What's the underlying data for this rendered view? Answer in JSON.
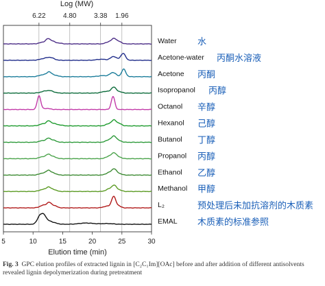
{
  "chart_data": {
    "type": "line",
    "top_axis": {
      "title": "Log (MW)",
      "ticks": [
        "6.22",
        "4.80",
        "3.38",
        "1.96"
      ],
      "tick_x": [
        11,
        16.2,
        21.4,
        25
      ]
    },
    "bottom_axis": {
      "title": "Elution time (min)",
      "ticks": [
        5,
        10,
        15,
        20,
        25,
        30
      ],
      "xlim": [
        5,
        30
      ]
    },
    "gridlines_x": [
      11,
      16.2,
      21.4,
      25
    ],
    "series": [
      {
        "name": "Water",
        "cn": "水",
        "color": "#4b2c86",
        "peaks": [
          [
            11.7,
            0.25,
            0.6
          ],
          [
            12.5,
            0.55,
            0.35
          ],
          [
            13.2,
            0.4,
            0.45
          ],
          [
            14.3,
            0.12,
            0.5
          ],
          [
            22.8,
            0.3,
            0.5
          ],
          [
            23.7,
            0.75,
            0.4
          ],
          [
            24.6,
            0.3,
            0.4
          ]
        ]
      },
      {
        "name": "Acetone-water",
        "cn": "丙酮水溶液",
        "color": "#1f2c8a",
        "peaks": [
          [
            12.0,
            0.25,
            0.8
          ],
          [
            13.0,
            0.3,
            0.6
          ],
          [
            21.5,
            0.15,
            0.8
          ],
          [
            23.6,
            0.55,
            0.5
          ],
          [
            25.2,
            1.0,
            0.4
          ]
        ]
      },
      {
        "name": "Acetone",
        "cn": "丙酮",
        "color": "#1a7c9a",
        "peaks": [
          [
            11.8,
            0.3,
            0.7
          ],
          [
            12.7,
            0.5,
            0.35
          ],
          [
            13.5,
            0.25,
            0.6
          ],
          [
            21.8,
            0.15,
            0.8
          ],
          [
            23.5,
            0.6,
            0.5
          ],
          [
            25.3,
            1.1,
            0.35
          ]
        ]
      },
      {
        "name": "Isopropanol",
        "cn": "丙醇",
        "color": "#0b6b3a",
        "peaks": [
          [
            12.0,
            0.25,
            0.7
          ],
          [
            13.0,
            0.25,
            0.6
          ],
          [
            22.3,
            0.25,
            0.7
          ],
          [
            23.6,
            0.8,
            0.4
          ],
          [
            24.5,
            0.2,
            0.5
          ]
        ]
      },
      {
        "name": "Octanol",
        "cn": "辛醇",
        "color": "#c23aa8",
        "peaks": [
          [
            11.0,
            2.0,
            0.3
          ],
          [
            12.3,
            0.15,
            0.6
          ],
          [
            23.5,
            1.9,
            0.3
          ]
        ]
      },
      {
        "name": "Hexanol",
        "cn": "己醇",
        "color": "#1c9a2c",
        "peaks": [
          [
            11.7,
            0.3,
            0.6
          ],
          [
            12.6,
            0.55,
            0.35
          ],
          [
            13.4,
            0.35,
            0.5
          ],
          [
            14.5,
            0.12,
            0.5
          ],
          [
            22.8,
            0.3,
            0.5
          ],
          [
            23.7,
            0.8,
            0.4
          ],
          [
            24.6,
            0.3,
            0.4
          ]
        ]
      },
      {
        "name": "Butanol",
        "cn": "丁醇",
        "color": "#2d9a3a",
        "peaks": [
          [
            11.7,
            0.25,
            0.6
          ],
          [
            12.6,
            0.45,
            0.35
          ],
          [
            13.4,
            0.3,
            0.5
          ],
          [
            22.8,
            0.35,
            0.5
          ],
          [
            23.7,
            0.85,
            0.4
          ],
          [
            24.6,
            0.2,
            0.4
          ]
        ]
      },
      {
        "name": "Propanol",
        "cn": "丙醇",
        "color": "#4aa34a",
        "peaks": [
          [
            11.7,
            0.3,
            0.6
          ],
          [
            12.6,
            0.5,
            0.35
          ],
          [
            13.4,
            0.3,
            0.5
          ],
          [
            22.8,
            0.35,
            0.5
          ],
          [
            23.7,
            0.8,
            0.4
          ],
          [
            24.6,
            0.2,
            0.4
          ]
        ]
      },
      {
        "name": "Ethanol",
        "cn": "乙醇",
        "color": "#3c8a32",
        "peaks": [
          [
            11.7,
            0.3,
            0.6
          ],
          [
            12.6,
            0.55,
            0.35
          ],
          [
            13.4,
            0.3,
            0.5
          ],
          [
            22.8,
            0.35,
            0.5
          ],
          [
            23.7,
            0.85,
            0.4
          ],
          [
            24.6,
            0.2,
            0.4
          ]
        ]
      },
      {
        "name": "Methanol",
        "cn": "甲醇",
        "color": "#5a9a22",
        "peaks": [
          [
            11.7,
            0.3,
            0.6
          ],
          [
            12.6,
            0.5,
            0.35
          ],
          [
            13.4,
            0.3,
            0.5
          ],
          [
            22.8,
            0.35,
            0.5
          ],
          [
            23.7,
            0.85,
            0.4
          ],
          [
            24.6,
            0.2,
            0.4
          ]
        ]
      },
      {
        "name": "L₂",
        "cn": "预处理后未加抗溶剂的木质素",
        "color": "#b01818",
        "peaks": [
          [
            11.8,
            0.4,
            0.6
          ],
          [
            12.7,
            0.6,
            0.35
          ],
          [
            13.5,
            0.35,
            0.5
          ],
          [
            22.5,
            0.25,
            0.6
          ],
          [
            23.6,
            1.6,
            0.35
          ],
          [
            24.4,
            0.3,
            0.4
          ]
        ]
      },
      {
        "name": "EMAL",
        "cn": "木质素的标准参照",
        "color": "#111111",
        "peaks": [
          [
            11.2,
            1.3,
            0.45
          ],
          [
            11.9,
            0.9,
            0.35
          ],
          [
            12.6,
            0.4,
            0.5
          ],
          [
            13.5,
            0.2,
            0.6
          ],
          [
            19.0,
            0.18,
            1.2
          ],
          [
            22.5,
            0.1,
            1.0
          ]
        ]
      }
    ]
  },
  "caption": {
    "label": "Fig. 3",
    "text": "GPC elution profiles of extracted lignin in [C₂C₁Im][OAc] before and after addition of different antisolvents revealed lignin depolymerization during pretreatment"
  }
}
